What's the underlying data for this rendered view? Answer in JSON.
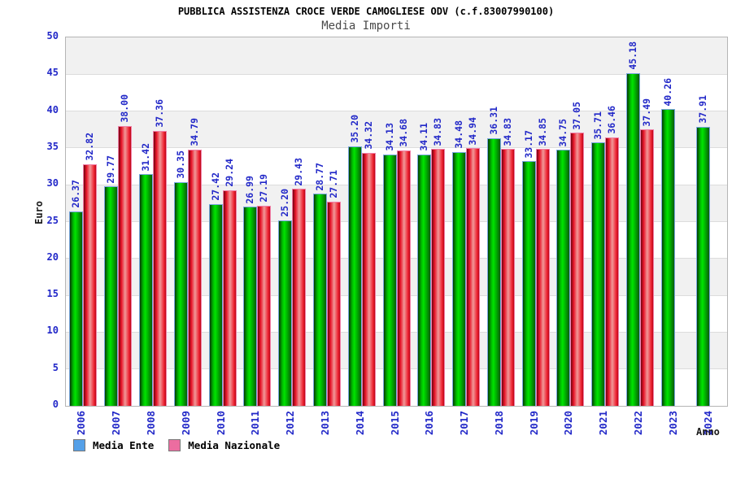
{
  "header": {
    "title": "PUBBLICA ASSISTENZA CROCE VERDE CAMOGLIESE ODV (c.f.83007990100)",
    "subtitle": "Media Importi"
  },
  "chart_data": {
    "type": "bar",
    "title": "PUBBLICA ASSISTENZA CROCE VERDE CAMOGLIESE ODV (c.f.83007990100)",
    "subtitle": "Media Importi",
    "xlabel": "Anno",
    "ylabel": "Euro",
    "ylim": [
      0,
      50
    ],
    "ytick_step": 5,
    "grid": "horizontal-bands",
    "categories": [
      "2006",
      "2007",
      "2008",
      "2009",
      "2010",
      "2011",
      "2012",
      "2013",
      "2014",
      "2015",
      "2016",
      "2017",
      "2018",
      "2019",
      "2020",
      "2021",
      "2022",
      "2023",
      "2024"
    ],
    "series": [
      {
        "name": "Media Ente",
        "bar_color": "#00cc00",
        "border_color": "#7aa7e0",
        "values": [
          26.37,
          29.77,
          31.42,
          30.35,
          27.42,
          26.99,
          25.2,
          28.77,
          35.2,
          34.13,
          34.11,
          34.48,
          36.31,
          33.17,
          34.75,
          35.71,
          45.18,
          40.26,
          37.91
        ]
      },
      {
        "name": "Media Nazionale",
        "bar_color": "#ee2233",
        "border_color": "#f080a8",
        "values": [
          32.82,
          38.0,
          37.36,
          34.79,
          29.24,
          27.19,
          29.43,
          27.71,
          34.32,
          34.68,
          34.83,
          34.94,
          34.83,
          34.85,
          37.05,
          36.46,
          37.49,
          null,
          null
        ]
      }
    ],
    "legend": {
      "position": "bottom-left",
      "items": [
        {
          "label": "Media Ente",
          "swatch_color": "#55a0e8"
        },
        {
          "label": "Media Nazionale",
          "swatch_color": "#ec6da0"
        }
      ]
    },
    "colors": {
      "tick_label": "#2228c8",
      "value_label": "#2228c8",
      "band_light": "#ffffff",
      "band_dark": "#f1f1f1",
      "plot_border": "#b5b5b5",
      "title": "#000000",
      "subtitle": "#4a4a4a"
    }
  }
}
